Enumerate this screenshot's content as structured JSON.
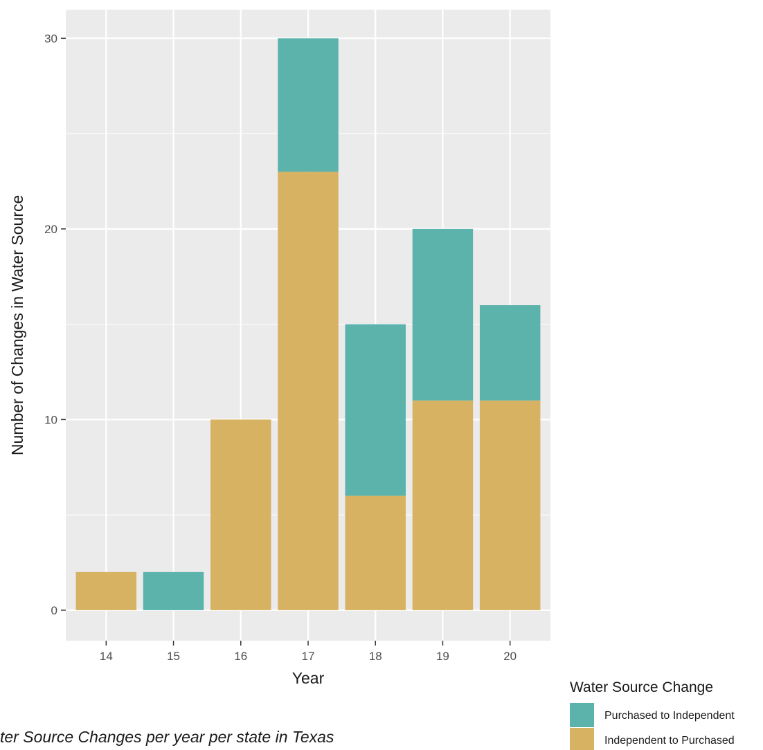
{
  "chart_data": {
    "type": "bar",
    "stacked": true,
    "categories": [
      "14",
      "15",
      "16",
      "17",
      "18",
      "19",
      "20"
    ],
    "series": [
      {
        "name": "Independent to Purchased",
        "color": "#D7B263",
        "values": [
          2,
          0,
          10,
          23,
          6,
          11,
          11
        ]
      },
      {
        "name": "Purchased to Independent",
        "color": "#5BB3AC",
        "values": [
          0,
          2,
          0,
          7,
          9,
          9,
          5
        ]
      }
    ],
    "title": "",
    "xlabel": "Year",
    "ylabel": "Number of Changes in Water Source",
    "ylim": [
      -1.6,
      31.5
    ],
    "yticks": [
      0,
      10,
      20,
      30
    ],
    "yminor": [
      5,
      15,
      25
    ],
    "grid": true,
    "legend": {
      "title": "Water Source Change",
      "placement": "bottom-right",
      "entries": [
        {
          "name": "Purchased to Independent",
          "color": "#5BB3AC"
        },
        {
          "name": "Independent to Purchased",
          "color": "#D7B263"
        }
      ]
    },
    "panel_background": "#EBEBEB",
    "grid_color": "#FFFFFF"
  },
  "caption": "ter Source Changes per year per state in Texas"
}
